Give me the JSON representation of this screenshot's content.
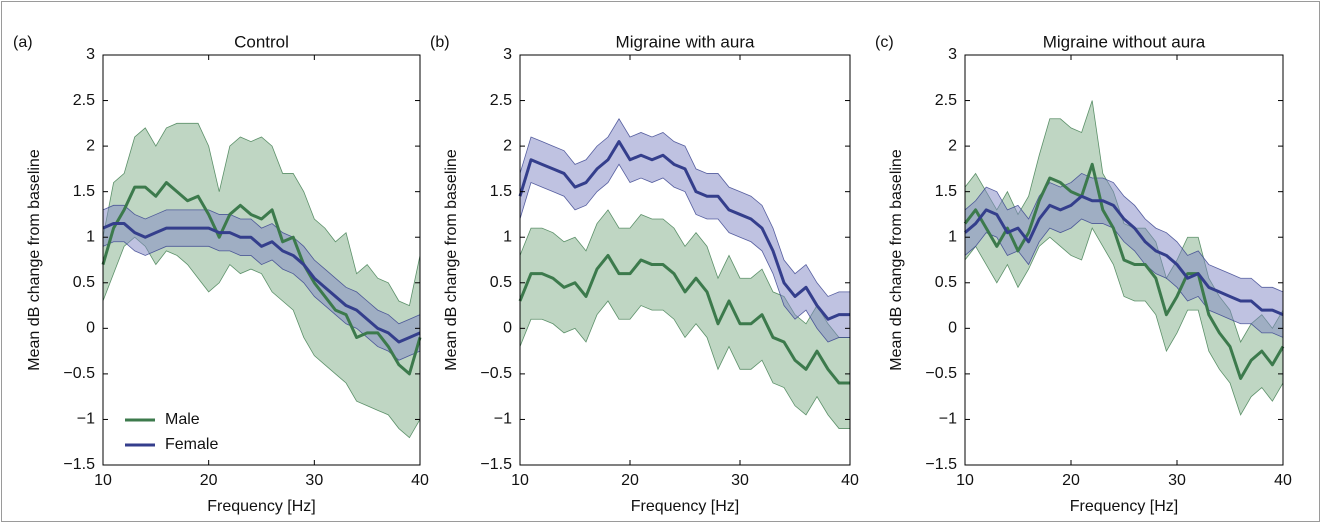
{
  "chart_data": [
    {
      "type": "line",
      "panel_label": "(a)",
      "title": "Control",
      "xlabel": "Frequency [Hz]",
      "ylabel": "Mean dB change from baseline",
      "x": [
        10,
        11,
        12,
        13,
        14,
        15,
        16,
        17,
        18,
        19,
        20,
        21,
        22,
        23,
        24,
        25,
        26,
        27,
        28,
        29,
        30,
        31,
        32,
        33,
        34,
        35,
        36,
        37,
        38,
        39,
        40
      ],
      "xlim": [
        10,
        40
      ],
      "xticks": [
        10,
        20,
        30,
        40
      ],
      "ylim": [
        -1.5,
        3
      ],
      "yticks": [
        {
          "value": -1.5,
          "label": "−1.5"
        },
        {
          "value": -1,
          "label": "−1"
        },
        {
          "value": -0.5,
          "label": "−0.5"
        },
        0,
        0.5,
        1,
        1.5,
        2,
        2.5,
        3
      ],
      "legend": "lower left",
      "series": [
        {
          "name": "Male",
          "color": "#3c7a4c",
          "band_color": "#7fae88",
          "values": [
            0.7,
            1.1,
            1.3,
            1.55,
            1.55,
            1.45,
            1.6,
            1.5,
            1.4,
            1.45,
            1.25,
            1.0,
            1.25,
            1.35,
            1.25,
            1.2,
            1.3,
            0.95,
            1.0,
            0.7,
            0.5,
            0.35,
            0.2,
            0.15,
            -0.1,
            -0.05,
            -0.05,
            -0.2,
            -0.4,
            -0.5,
            -0.1
          ],
          "lower": [
            0.3,
            0.6,
            0.9,
            1.0,
            0.9,
            0.7,
            0.85,
            0.8,
            0.7,
            0.55,
            0.4,
            0.5,
            0.7,
            0.6,
            0.65,
            0.6,
            0.4,
            0.3,
            0.2,
            -0.1,
            -0.3,
            -0.4,
            -0.5,
            -0.6,
            -0.8,
            -0.85,
            -0.9,
            -0.95,
            -1.1,
            -1.2,
            -1.0
          ],
          "upper": [
            1.0,
            1.6,
            1.7,
            2.1,
            2.2,
            2.0,
            2.2,
            2.25,
            2.25,
            2.25,
            2.0,
            1.5,
            2.0,
            2.1,
            2.05,
            2.1,
            2.0,
            1.7,
            1.7,
            1.5,
            1.2,
            1.1,
            0.95,
            1.05,
            0.6,
            0.7,
            0.55,
            0.5,
            0.3,
            0.25,
            0.8
          ]
        },
        {
          "name": "Female",
          "color": "#343e8c",
          "band_color": "#7f86c4",
          "values": [
            1.1,
            1.15,
            1.15,
            1.05,
            1.0,
            1.05,
            1.1,
            1.1,
            1.1,
            1.1,
            1.1,
            1.05,
            1.05,
            1.0,
            1.0,
            0.9,
            0.95,
            0.85,
            0.8,
            0.7,
            0.55,
            0.45,
            0.35,
            0.25,
            0.2,
            0.1,
            0.0,
            -0.05,
            -0.15,
            -0.1,
            -0.05
          ],
          "lower": [
            0.9,
            0.95,
            0.95,
            0.85,
            0.8,
            0.85,
            0.9,
            0.9,
            0.9,
            0.9,
            0.9,
            0.85,
            0.85,
            0.8,
            0.8,
            0.7,
            0.75,
            0.65,
            0.6,
            0.5,
            0.35,
            0.25,
            0.15,
            0.05,
            0,
            -0.1,
            -0.2,
            -0.25,
            -0.35,
            -0.3,
            -0.25
          ],
          "upper": [
            1.3,
            1.35,
            1.35,
            1.25,
            1.2,
            1.25,
            1.3,
            1.3,
            1.3,
            1.3,
            1.3,
            1.25,
            1.25,
            1.2,
            1.2,
            1.1,
            1.15,
            1.05,
            1,
            0.9,
            0.75,
            0.65,
            0.55,
            0.45,
            0.4,
            0.3,
            0.2,
            0.15,
            0.05,
            0.1,
            0.15
          ]
        }
      ]
    },
    {
      "type": "line",
      "panel_label": "(b)",
      "title": "Migraine with aura",
      "xlabel": "Frequency [Hz]",
      "ylabel": "Mean dB change from baseline",
      "x": [
        10,
        11,
        12,
        13,
        14,
        15,
        16,
        17,
        18,
        19,
        20,
        21,
        22,
        23,
        24,
        25,
        26,
        27,
        28,
        29,
        30,
        31,
        32,
        33,
        34,
        35,
        36,
        37,
        38,
        39,
        40
      ],
      "xlim": [
        10,
        40
      ],
      "xticks": [
        10,
        20,
        30,
        40
      ],
      "ylim": [
        -1.5,
        3
      ],
      "yticks": [
        {
          "value": -1.5,
          "label": "−1.5"
        },
        {
          "value": -1,
          "label": "−1"
        },
        {
          "value": -0.5,
          "label": "−0.5"
        },
        0,
        0.5,
        1,
        1.5,
        2,
        2.5,
        3
      ],
      "series": [
        {
          "name": "Male",
          "color": "#3c7a4c",
          "band_color": "#7fae88",
          "values": [
            0.3,
            0.6,
            0.6,
            0.55,
            0.45,
            0.5,
            0.35,
            0.65,
            0.8,
            0.6,
            0.6,
            0.75,
            0.7,
            0.7,
            0.6,
            0.4,
            0.55,
            0.4,
            0.05,
            0.3,
            0.05,
            0.05,
            0.15,
            -0.1,
            -0.15,
            -0.35,
            -0.45,
            -0.25,
            -0.45,
            -0.6,
            -0.6
          ],
          "lower": [
            -0.2,
            0.1,
            0.1,
            0.05,
            -0.05,
            0,
            -0.15,
            0.15,
            0.3,
            0.1,
            0.1,
            0.25,
            0.2,
            0.2,
            0.1,
            -0.1,
            0.05,
            -0.1,
            -0.45,
            -0.2,
            -0.45,
            -0.45,
            -0.35,
            -0.6,
            -0.65,
            -0.85,
            -0.95,
            -0.75,
            -0.95,
            -1.1,
            -1.1
          ],
          "upper": [
            0.8,
            1.1,
            1.1,
            1.05,
            0.95,
            1,
            0.85,
            1.15,
            1.3,
            1.1,
            1.1,
            1.25,
            1.2,
            1.2,
            1.1,
            0.9,
            1.05,
            0.9,
            0.55,
            0.8,
            0.55,
            0.55,
            0.65,
            0.4,
            0.35,
            0.15,
            0.05,
            0.25,
            0.05,
            -0.1,
            -0.1
          ]
        },
        {
          "name": "Female",
          "color": "#343e8c",
          "band_color": "#7f86c4",
          "values": [
            1.45,
            1.85,
            1.8,
            1.75,
            1.7,
            1.55,
            1.6,
            1.75,
            1.85,
            2.05,
            1.85,
            1.9,
            1.85,
            1.9,
            1.8,
            1.75,
            1.5,
            1.45,
            1.45,
            1.3,
            1.25,
            1.2,
            1.1,
            0.85,
            0.5,
            0.35,
            0.45,
            0.25,
            0.1,
            0.15,
            0.15
          ],
          "lower": [
            1.2,
            1.6,
            1.55,
            1.5,
            1.45,
            1.3,
            1.35,
            1.5,
            1.6,
            1.8,
            1.6,
            1.65,
            1.6,
            1.65,
            1.55,
            1.5,
            1.25,
            1.2,
            1.2,
            1.05,
            1,
            0.95,
            0.85,
            0.6,
            0.25,
            0.1,
            0.2,
            0,
            -0.15,
            -0.1,
            -0.1
          ],
          "upper": [
            1.7,
            2.1,
            2.05,
            2,
            1.95,
            1.8,
            1.85,
            2,
            2.1,
            2.3,
            2.1,
            2.15,
            2.1,
            2.15,
            2.05,
            2,
            1.75,
            1.7,
            1.7,
            1.55,
            1.5,
            1.45,
            1.35,
            1.1,
            0.75,
            0.6,
            0.7,
            0.5,
            0.35,
            0.4,
            0.4
          ]
        }
      ]
    },
    {
      "type": "line",
      "panel_label": "(c)",
      "title": "Migraine without aura",
      "xlabel": "Frequency [Hz]",
      "ylabel": "Mean dB change from baseline",
      "x": [
        10,
        11,
        12,
        13,
        14,
        15,
        16,
        17,
        18,
        19,
        20,
        21,
        22,
        23,
        24,
        25,
        26,
        27,
        28,
        29,
        30,
        31,
        32,
        33,
        34,
        35,
        36,
        37,
        38,
        39,
        40
      ],
      "xlim": [
        10,
        40
      ],
      "xticks": [
        10,
        20,
        30,
        40
      ],
      "ylim": [
        -1.5,
        3
      ],
      "yticks": [
        {
          "value": -1.5,
          "label": "−1.5"
        },
        {
          "value": -1,
          "label": "−1"
        },
        {
          "value": -0.5,
          "label": "−0.5"
        },
        0,
        0.5,
        1,
        1.5,
        2,
        2.5,
        3
      ],
      "series": [
        {
          "name": "Male",
          "color": "#3c7a4c",
          "band_color": "#7fae88",
          "values": [
            1.15,
            1.3,
            1.1,
            0.9,
            1.1,
            0.85,
            1.05,
            1.4,
            1.65,
            1.6,
            1.5,
            1.45,
            1.8,
            1.3,
            1.1,
            0.75,
            0.7,
            0.7,
            0.55,
            0.15,
            0.35,
            0.6,
            0.6,
            0.15,
            -0.05,
            -0.2,
            -0.55,
            -0.35,
            -0.25,
            -0.4,
            -0.2
          ],
          "lower": [
            0.75,
            0.9,
            0.7,
            0.5,
            0.7,
            0.45,
            0.65,
            0.9,
            1.0,
            0.9,
            0.8,
            0.75,
            1.1,
            0.9,
            0.7,
            0.35,
            0.3,
            0.3,
            0.15,
            -0.25,
            -0.05,
            0.2,
            0.2,
            -0.25,
            -0.45,
            -0.6,
            -0.95,
            -0.75,
            -0.65,
            -0.8,
            -0.6
          ],
          "upper": [
            1.55,
            1.7,
            1.5,
            1.3,
            1.5,
            1.25,
            1.45,
            1.9,
            2.3,
            2.3,
            2.2,
            2.15,
            2.5,
            1.7,
            1.5,
            1.15,
            1.1,
            1.1,
            0.95,
            0.55,
            0.75,
            1.0,
            1.0,
            0.55,
            0.35,
            0.2,
            -0.15,
            0.05,
            0.15,
            0,
            0.2
          ]
        },
        {
          "name": "Female",
          "color": "#343e8c",
          "band_color": "#7f86c4",
          "values": [
            1.05,
            1.15,
            1.3,
            1.25,
            1.05,
            1.1,
            0.95,
            1.2,
            1.35,
            1.3,
            1.35,
            1.45,
            1.4,
            1.4,
            1.35,
            1.2,
            1.1,
            0.95,
            0.85,
            0.8,
            0.7,
            0.55,
            0.6,
            0.45,
            0.4,
            0.35,
            0.3,
            0.3,
            0.2,
            0.2,
            0.15
          ],
          "lower": [
            0.8,
            0.9,
            1.05,
            1,
            0.8,
            0.85,
            0.7,
            0.95,
            1.1,
            1.05,
            1.1,
            1.2,
            1.15,
            1.15,
            1.1,
            0.95,
            0.85,
            0.7,
            0.6,
            0.55,
            0.45,
            0.3,
            0.35,
            0.2,
            0.15,
            0.1,
            0.05,
            0.05,
            -0.05,
            -0.05,
            -0.1
          ],
          "upper": [
            1.3,
            1.4,
            1.55,
            1.5,
            1.3,
            1.35,
            1.2,
            1.45,
            1.6,
            1.55,
            1.6,
            1.7,
            1.65,
            1.65,
            1.6,
            1.45,
            1.35,
            1.2,
            1.1,
            1.05,
            0.95,
            0.8,
            0.85,
            0.7,
            0.65,
            0.6,
            0.55,
            0.55,
            0.45,
            0.45,
            0.4
          ]
        }
      ]
    }
  ]
}
